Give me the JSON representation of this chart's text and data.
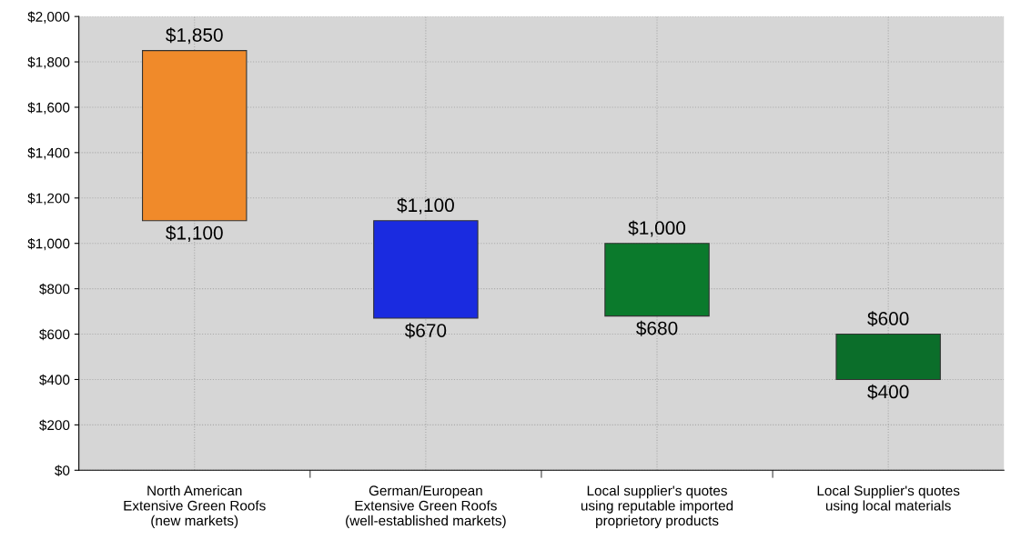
{
  "chart_data": {
    "type": "bar",
    "categories": [
      "North American\nExtensive Green Roofs\n(new markets)",
      "German/European\nExtensive Green Roofs\n(well-established markets)",
      "Local supplier's quotes\nusing reputable imported\nproprietory products",
      "Local Supplier's quotes\nusing local materials"
    ],
    "base": [
      1100,
      670,
      680,
      400
    ],
    "values": [
      750,
      430,
      320,
      200
    ],
    "colors": [
      "#f08a2a",
      "#1a2be0",
      "#0b7a2c",
      "#0b6e2a"
    ],
    "ylim": [
      0,
      2000
    ],
    "yticks": [
      {
        "value": 0,
        "label": "$0"
      },
      {
        "value": 200,
        "label": "$200"
      },
      {
        "value": 400,
        "label": "$400"
      },
      {
        "value": 600,
        "label": "$600"
      },
      {
        "value": 800,
        "label": "$800"
      },
      {
        "value": 1000,
        "label": "$1,000"
      },
      {
        "value": 1200,
        "label": "$1,200"
      },
      {
        "value": 1400,
        "label": "$1,400"
      },
      {
        "value": 1600,
        "label": "$1,600"
      },
      {
        "value": 1800,
        "label": "$1,800"
      },
      {
        "value": 2000,
        "label": "$2,000"
      }
    ],
    "grid": true,
    "annotations": [
      {
        "text": "$1,850",
        "x": "North American\nExtensive Green Roofs\n(new markets)",
        "y": 1850
      },
      {
        "text": "$1,100",
        "x": "North American\nExtensive Green Roofs\n(new markets)",
        "y": 1100
      },
      {
        "text": "$1,100",
        "x": "German/European\nExtensive Green Roofs\n(well-established markets)",
        "y": 1100
      },
      {
        "text": "$670",
        "x": "German/European\nExtensive Green Roofs\n(well-established markets)",
        "y": 670
      },
      {
        "text": "$1,000",
        "x": "Local supplier's quotes\nusing reputable imported\nproprietory products",
        "y": 1000
      },
      {
        "text": "$680",
        "x": "Local supplier's quotes\nusing reputable imported\nproprietory products",
        "y": 680
      },
      {
        "text": "$600",
        "x": "Local Supplier's quotes\nusing local materials",
        "y": 600
      },
      {
        "text": "$400",
        "x": "Local Supplier's quotes\nusing local materials",
        "y": 400
      }
    ]
  }
}
